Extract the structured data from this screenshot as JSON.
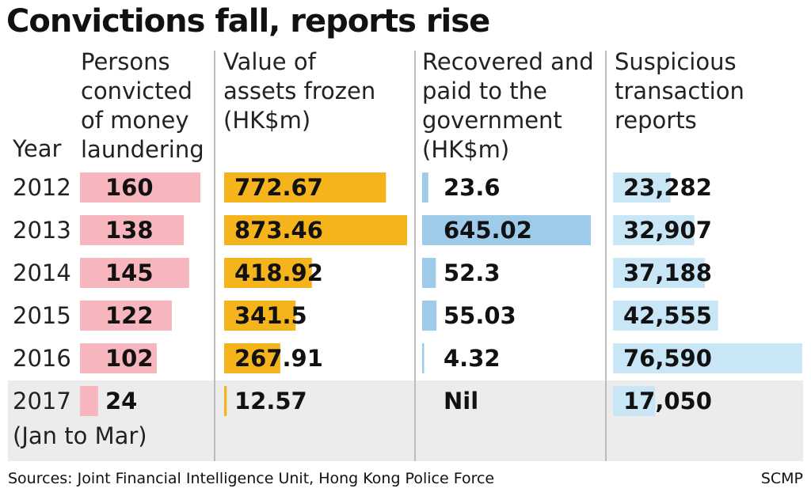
{
  "title": "Convictions fall, reports rise",
  "source": "Sources: Joint Financial Intelligence Unit, Hong Kong Police Force",
  "credit": "SCMP",
  "colors": {
    "convicted": "#f7b6bd",
    "frozen": "#f5b41b",
    "recovered": "#9fcbea",
    "reports": "#c9e6f7",
    "highlight_row": "#ececec",
    "divider": "#bdbdbd"
  },
  "chart_data": {
    "type": "table",
    "title": "Convictions fall, reports rise",
    "year_header": "Year",
    "columns": [
      {
        "key": "convicted",
        "header": [
          "Persons",
          "convicted",
          "of money",
          "laundering"
        ]
      },
      {
        "key": "frozen",
        "header": [
          "Value of",
          "assets frozen",
          "(HK$m)"
        ]
      },
      {
        "key": "recovered",
        "header": [
          "Recovered and",
          "paid to the",
          "government",
          "(HK$m)"
        ]
      },
      {
        "key": "reports",
        "header": [
          "Suspicious",
          "transaction",
          "reports"
        ]
      }
    ],
    "rows": [
      {
        "year": "2012",
        "note": "",
        "convicted": 160,
        "frozen": 772.67,
        "recovered": 23.6,
        "reports": 23282,
        "labels": {
          "convicted": "160",
          "frozen": "772.67",
          "recovered": "23.6",
          "reports": "23,282"
        }
      },
      {
        "year": "2013",
        "note": "",
        "convicted": 138,
        "frozen": 873.46,
        "recovered": 645.02,
        "reports": 32907,
        "labels": {
          "convicted": "138",
          "frozen": "873.46",
          "recovered": "645.02",
          "reports": "32,907"
        }
      },
      {
        "year": "2014",
        "note": "",
        "convicted": 145,
        "frozen": 418.92,
        "recovered": 52.3,
        "reports": 37188,
        "labels": {
          "convicted": "145",
          "frozen": "418.92",
          "recovered": "52.3",
          "reports": "37,188"
        }
      },
      {
        "year": "2015",
        "note": "",
        "convicted": 122,
        "frozen": 341.5,
        "recovered": 55.03,
        "reports": 42555,
        "labels": {
          "convicted": "122",
          "frozen": "341.5",
          "recovered": "55.03",
          "reports": "42,555"
        }
      },
      {
        "year": "2016",
        "note": "",
        "convicted": 102,
        "frozen": 267.91,
        "recovered": 4.32,
        "reports": 76590,
        "labels": {
          "convicted": "102",
          "frozen": "267.91",
          "recovered": "4.32",
          "reports": "76,590"
        }
      },
      {
        "year": "2017",
        "note": "(Jan to Mar)",
        "convicted": 24,
        "frozen": 12.57,
        "recovered": 0,
        "reports": 17050,
        "labels": {
          "convicted": "24",
          "frozen": "12.57",
          "recovered": "Nil",
          "reports": "17,050"
        }
      }
    ]
  }
}
